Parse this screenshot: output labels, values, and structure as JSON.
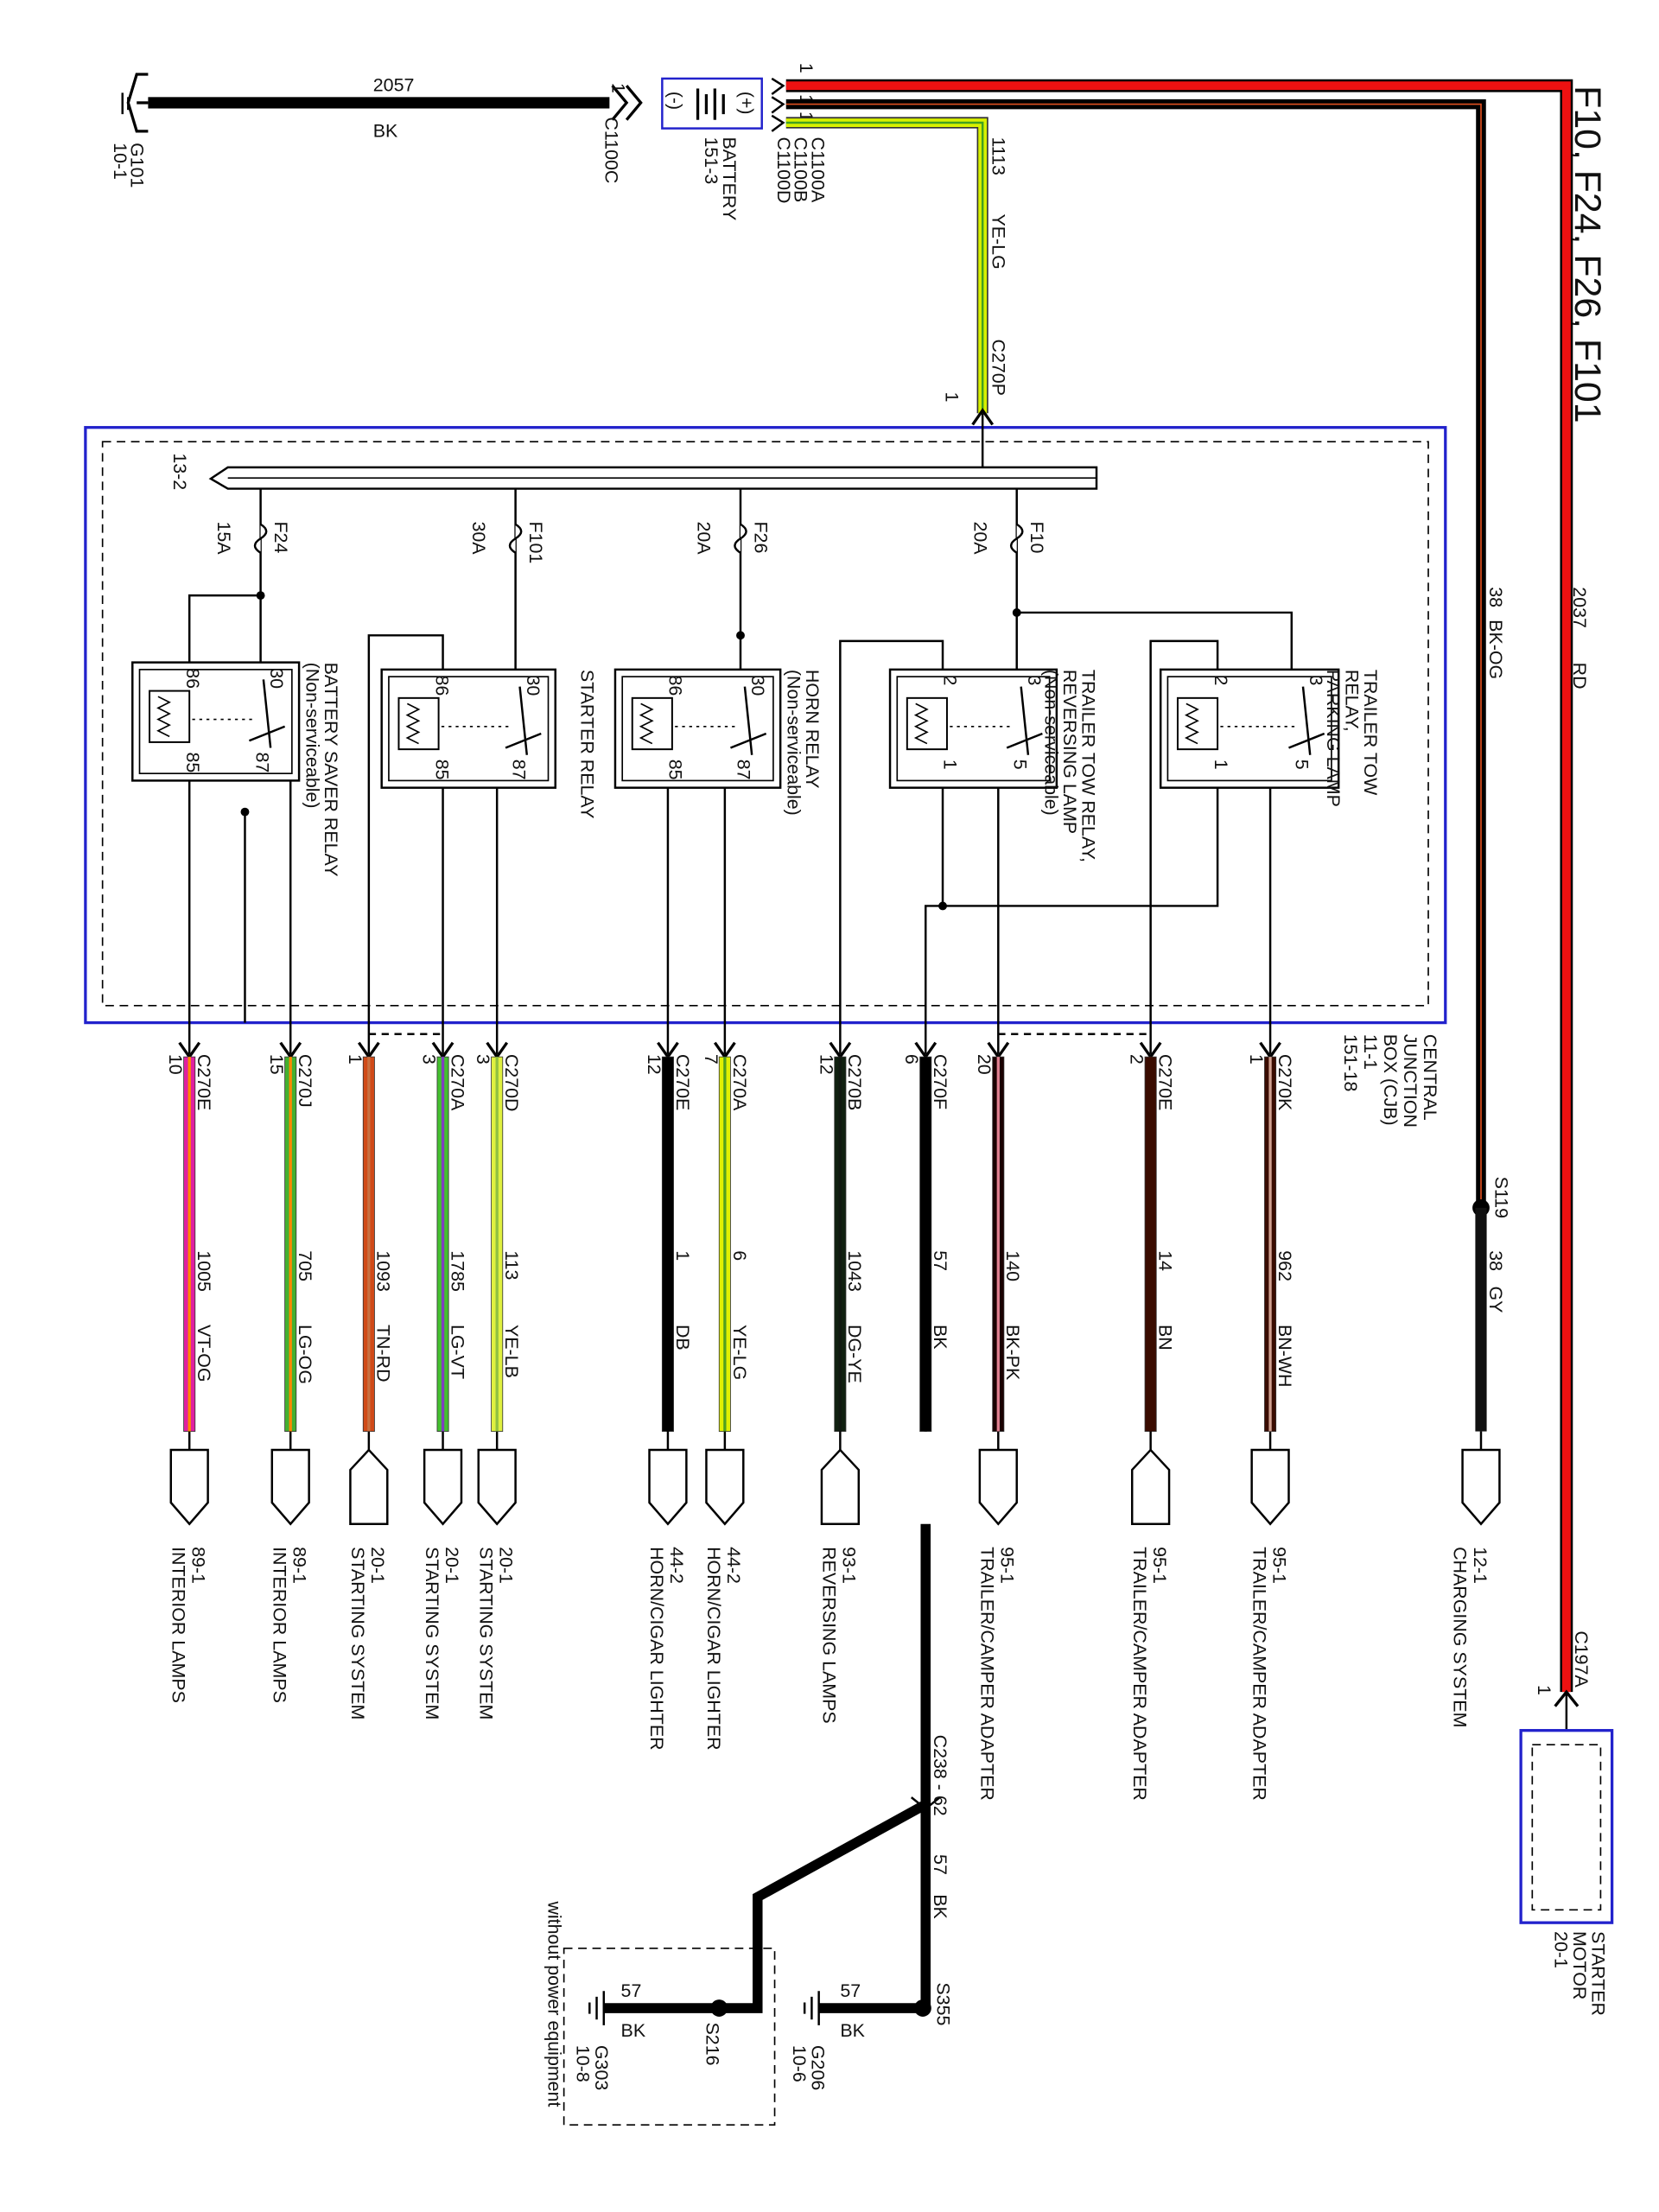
{
  "title": "F10, F24, F26, F101",
  "ground_top": {
    "id": "G101",
    "ref": "10-1",
    "circuit": "2057",
    "color": "BK",
    "connector": "C1100C",
    "pin": "1"
  },
  "battery": {
    "name": "BATTERY",
    "ref": "151-3",
    "plus": "(+)",
    "minus": "(-)",
    "connectors": [
      "C1100A",
      "C1100B",
      "C1100D"
    ],
    "pins": [
      "1",
      "1",
      "1"
    ]
  },
  "feed": {
    "circuit": "1113",
    "color": "YE-LG",
    "connector": "C270P",
    "pin": "1",
    "hex": [
      "#d8f000",
      "#40a020"
    ]
  },
  "red_wire": {
    "circuit": "2037",
    "color": "RD",
    "hex": "#ee1111"
  },
  "bkog_wire": {
    "circuit": "38",
    "color": "BK-OG"
  },
  "splice_s119": {
    "id": "S119",
    "circuit": "38",
    "color": "GY",
    "dest_ref": "12-1",
    "dest_name": "CHARGING SYSTEM"
  },
  "starter_motor": {
    "connector": "C197A",
    "pin": "1",
    "name": "STARTER",
    "name2": "MOTOR",
    "ref": "20-1"
  },
  "cjb": {
    "lines": [
      "CENTRAL",
      "JUNCTION",
      "BOX (CJB)",
      "11-1",
      "151-18"
    ],
    "bus_ref": "13-2",
    "border_color": "#2222cc"
  },
  "fuses": [
    {
      "id": "F24",
      "rating": "15A"
    },
    {
      "id": "F101",
      "rating": "30A"
    },
    {
      "id": "F26",
      "rating": "20A"
    },
    {
      "id": "F10",
      "rating": "20A"
    }
  ],
  "relays": [
    {
      "name": [
        "BATTERY SAVER RELAY",
        "(Non-serviceable)"
      ],
      "pins": [
        "86",
        "85",
        "30",
        "87"
      ]
    },
    {
      "name": [
        "STARTER RELAY"
      ],
      "pins": [
        "86",
        "85",
        "30",
        "87"
      ]
    },
    {
      "name": [
        "HORN RELAY",
        "(Non-serviceable)"
      ],
      "pins": [
        "86",
        "85",
        "30",
        "87"
      ]
    },
    {
      "name": [
        "TRAILER TOW RELAY,",
        "REVERSING LAMP",
        "(Non-serviceable)"
      ],
      "pins": [
        "2",
        "1",
        "3",
        "5"
      ]
    },
    {
      "name": [
        "TRAILER TOW",
        "RELAY,",
        "PARKING LAMP"
      ],
      "pins": [
        "2",
        "1",
        "3",
        "5"
      ]
    }
  ],
  "wires": [
    {
      "connector": "C270E",
      "pin": "10",
      "circuit": "1005",
      "color": "VT-OG",
      "hex": [
        "#e020a0",
        "#ff8800"
      ],
      "dest_ref": "89-1",
      "dest_name": "INTERIOR LAMPS"
    },
    {
      "connector": "C270J",
      "pin": "15",
      "circuit": "705",
      "color": "LG-OG",
      "hex": [
        "#44b030",
        "#ff8800"
      ],
      "dest_ref": "89-1",
      "dest_name": "INTERIOR LAMPS"
    },
    {
      "connector": "",
      "pin": "1",
      "circuit": "1093",
      "color": "TN-RD",
      "hex": [
        "#d04a18",
        "#c87040"
      ],
      "dest_ref": "20-1",
      "dest_name": "STARTING SYSTEM"
    },
    {
      "connector": "C270A",
      "pin": "3",
      "circuit": "1785",
      "color": "LG-VT",
      "hex": [
        "#44c030",
        "#8040c0"
      ],
      "dest_ref": "20-1",
      "dest_name": "STARTING SYSTEM"
    },
    {
      "connector": "C270D",
      "pin": "3",
      "circuit": "113",
      "color": "YE-LB",
      "hex": [
        "#e0f040",
        "#90c040"
      ],
      "dest_ref": "20-1",
      "dest_name": "STARTING SYSTEM"
    },
    {
      "connector": "C270E",
      "pin": "12",
      "circuit": "1",
      "color": "DB",
      "hex": [
        "#000000",
        "#000000"
      ],
      "dest_ref": "44-2",
      "dest_name": "HORN/CIGAR LIGHTER"
    },
    {
      "connector": "C270A",
      "pin": "7",
      "circuit": "6",
      "color": "YE-LG",
      "hex": [
        "#e0f000",
        "#50a020"
      ],
      "dest_ref": "44-2",
      "dest_name": "HORN/CIGAR LIGHTER"
    },
    {
      "connector": "C270B",
      "pin": "12",
      "circuit": "1043",
      "color": "DG-YE",
      "hex": [
        "#102010",
        "#101810"
      ],
      "dest_ref": "93-1",
      "dest_name": "REVERSING LAMPS"
    },
    {
      "connector": "C270F",
      "pin": "6",
      "circuit": "57",
      "color": "BK",
      "hex": [
        "#000000",
        "#000000"
      ],
      "dest_ref": "",
      "dest_name": ""
    },
    {
      "connector": "",
      "pin": "20",
      "circuit": "140",
      "color": "BK-PK",
      "hex": [
        "#1a0000",
        "#e08090"
      ],
      "dest_ref": "95-1",
      "dest_name": "TRAILER/CAMPER ADAPTER"
    },
    {
      "connector": "C270E",
      "pin": "2",
      "circuit": "14",
      "color": "BN",
      "hex": [
        "#3a0c00",
        "#3a0c00"
      ],
      "dest_ref": "95-1",
      "dest_name": "TRAILER/CAMPER ADAPTER"
    },
    {
      "connector": "C270K",
      "pin": "1",
      "circuit": "962",
      "color": "BN-WH",
      "hex": [
        "#3a0c00",
        "#d0a090"
      ],
      "dest_ref": "95-1",
      "dest_name": "TRAILER/CAMPER ADAPTER"
    }
  ],
  "ground_branch": {
    "connector": "C238 - 62",
    "circuit": "57",
    "color": "BK",
    "s355": "S355",
    "g206": {
      "id": "G206",
      "ref": "10-6",
      "circuit": "57",
      "color": "BK"
    },
    "s216": "S216",
    "g303": {
      "id": "G303",
      "ref": "10-8",
      "circuit": "57",
      "color": "BK"
    },
    "note": "without power equipment"
  }
}
